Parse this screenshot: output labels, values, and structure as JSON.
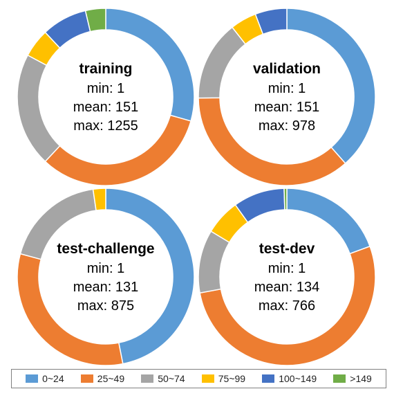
{
  "chart_data": [
    {
      "type": "pie",
      "subtype": "donut",
      "center_title": "training",
      "stats": [
        "min: 1",
        "mean: 151",
        "max: 1255"
      ],
      "categories": [
        "0~24",
        "25~49",
        "50~74",
        "75~99",
        "100~149",
        ">149"
      ],
      "values": [
        29.4,
        32.6,
        20.8,
        5.2,
        8.3,
        3.7
      ],
      "unit": "%"
    },
    {
      "type": "pie",
      "subtype": "donut",
      "center_title": "validation",
      "stats": [
        "min: 1",
        "mean: 151",
        "max: 978"
      ],
      "categories": [
        "0~24",
        "25~49",
        "50~74",
        "75~99",
        "100~149",
        ">149"
      ],
      "values": [
        38.5,
        36.3,
        14.6,
        4.8,
        5.8,
        0.0
      ],
      "unit": "%"
    },
    {
      "type": "pie",
      "subtype": "donut",
      "center_title": "test-challenge",
      "stats": [
        "min: 1",
        "mean: 131",
        "max: 875"
      ],
      "categories": [
        "0~24",
        "25~49",
        "50~74",
        "75~99",
        "100~149",
        ">149"
      ],
      "values": [
        46.9,
        32.3,
        18.5,
        2.3,
        0.0,
        0.0
      ],
      "unit": "%"
    },
    {
      "type": "pie",
      "subtype": "donut",
      "center_title": "test-dev",
      "stats": [
        "min: 1",
        "mean: 134",
        "max: 766"
      ],
      "categories": [
        "0~24",
        "25~49",
        "50~74",
        "75~99",
        "100~149",
        ">149"
      ],
      "values": [
        19.4,
        52.7,
        11.5,
        6.5,
        9.4,
        0.5
      ],
      "unit": "%"
    }
  ],
  "legend": {
    "position": "bottom",
    "items": [
      {
        "label": "0~24",
        "color": "#5B9BD5"
      },
      {
        "label": "25~49",
        "color": "#ED7D31"
      },
      {
        "label": "50~74",
        "color": "#A5A5A5"
      },
      {
        "label": "75~99",
        "color": "#FFC000"
      },
      {
        "label": "100~149",
        "color": "#4472C4"
      },
      {
        "label": ">149",
        "color": "#70AD47"
      }
    ]
  }
}
